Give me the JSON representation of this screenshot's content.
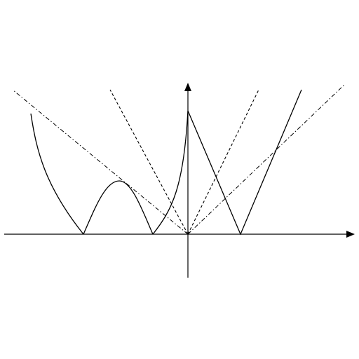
{
  "diagram": {
    "description_type": "function-graph",
    "colors": {
      "background": "#ffffff",
      "stroke": "#000000"
    }
  }
}
